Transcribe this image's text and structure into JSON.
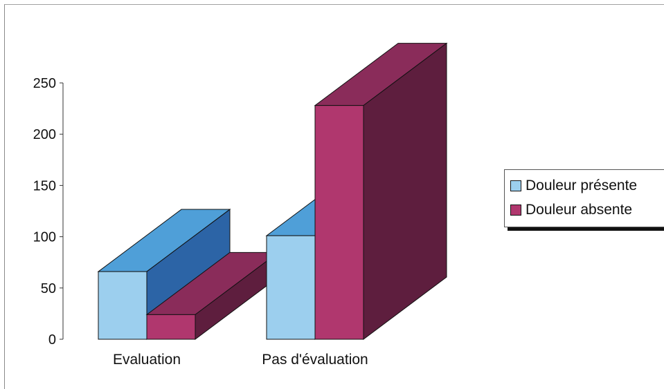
{
  "chart_data": {
    "type": "bar",
    "style": "3d-clustered",
    "categories": [
      "Evaluation",
      "Pas d'évaluation"
    ],
    "series": [
      {
        "name": "Douleur présente",
        "values": [
          66,
          101
        ],
        "color": "#9ccfee"
      },
      {
        "name": "Douleur absente",
        "values": [
          24,
          228
        ],
        "color": "#b0376e"
      }
    ],
    "yticks": [
      "0",
      "50",
      "100",
      "150",
      "200",
      "250"
    ],
    "ylim": [
      0,
      250
    ],
    "grid": false,
    "legend_position": "right"
  },
  "colors": {
    "present_top": "#4f9fd8",
    "present_side": "#2c64a6",
    "absent_top": "#8a2c5a",
    "absent_side": "#5e1e3e",
    "edge": "#111111"
  }
}
